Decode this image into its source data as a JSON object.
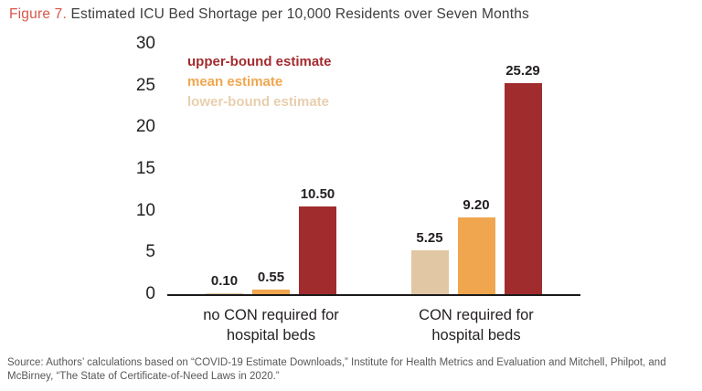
{
  "title": {
    "prefix": "Figure 7.",
    "text": " Estimated ICU Bed Shortage per 10,000 Residents over Seven Months",
    "prefix_color": "#d9564a"
  },
  "source_note": "Source: Authors’ calculations based on “COVID-19 Estimate Downloads,” Institute for Health Metrics and Evaluation and Mitchell, Philpot, and McBirney, “The State of Certificate-of-Need Laws in 2020.”",
  "chart_data": {
    "type": "bar",
    "title": "Estimated ICU Bed Shortage per 10,000 Residents over Seven Months",
    "categories": [
      "no CON required for\nhospital beds",
      "CON required for\nhospital beds"
    ],
    "series": [
      {
        "name": "lower-bound estimate",
        "color": "#e2c7a5",
        "values": [
          0.1,
          5.25
        ]
      },
      {
        "name": "mean estimate",
        "color": "#f0a64f",
        "values": [
          0.55,
          9.2
        ]
      },
      {
        "name": "upper-bound estimate",
        "color": "#a12c2e",
        "values": [
          10.5,
          25.29
        ]
      }
    ],
    "value_labels": [
      [
        "0.10",
        "5.25"
      ],
      [
        "0.55",
        "9.20"
      ],
      [
        "10.50",
        "25.29"
      ]
    ],
    "legend": [
      {
        "label": "upper-bound estimate",
        "color": "#a32c30"
      },
      {
        "label": "mean estimate",
        "color": "#f0a64f"
      },
      {
        "label": "lower-bound estimate",
        "color": "#e8cfae"
      }
    ],
    "legend_position": "top-left-inside",
    "grid": false,
    "ylim": [
      0,
      30
    ],
    "y_ticks": [
      0,
      5,
      10,
      15,
      20,
      25,
      30
    ],
    "xlabel": "",
    "ylabel": ""
  }
}
